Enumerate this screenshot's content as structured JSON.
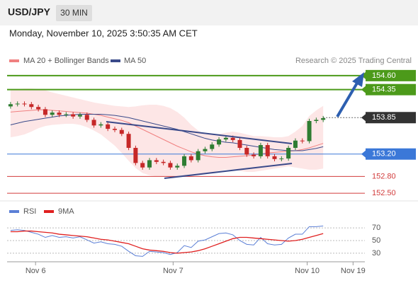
{
  "header": {
    "symbol": "USD/JPY",
    "timeframe": "30 MIN",
    "datetime": "Monday, November 10, 2025 3:50:35 AM CET",
    "credit": "Research © 2025 Trading Central"
  },
  "chart_data": [
    {
      "type": "candlestick",
      "xlim": [
        -0.5,
        51
      ],
      "xticks": [
        {
          "value": 3.6,
          "label": "Nov 6"
        },
        {
          "value": 23.4,
          "label": "Nov 7"
        },
        {
          "value": 42.7,
          "label": "Nov 10"
        },
        {
          "value": 49.3,
          "label": "Nov 19"
        }
      ],
      "ylim": [
        152.35,
        154.75
      ],
      "up_color": "#2e7d32",
      "down_color": "#c62828",
      "open": [
        154.05,
        154.09,
        154.1,
        154.09,
        154.04,
        154.0,
        153.9,
        153.94,
        153.9,
        153.91,
        153.87,
        153.9,
        153.81,
        153.71,
        153.73,
        153.65,
        153.63,
        153.56,
        153.31,
        153.04,
        152.96,
        153.09,
        153.06,
        153.04,
        152.96,
        152.99,
        153.16,
        153.09,
        153.25,
        153.29,
        153.37,
        153.46,
        153.49,
        153.45,
        153.31,
        153.19,
        153.16,
        153.36,
        153.16,
        153.11,
        153.12,
        153.31,
        153.44,
        153.43,
        153.79,
        153.81
      ],
      "high": [
        154.13,
        154.14,
        154.14,
        154.13,
        154.08,
        154.04,
        153.98,
        153.98,
        153.95,
        153.95,
        153.94,
        153.94,
        153.85,
        153.77,
        153.77,
        153.69,
        153.67,
        153.6,
        153.35,
        153.08,
        153.13,
        153.13,
        153.1,
        153.08,
        153.03,
        153.2,
        153.2,
        153.29,
        153.33,
        153.41,
        153.5,
        153.53,
        153.53,
        153.49,
        153.35,
        153.23,
        153.4,
        153.4,
        153.2,
        153.16,
        153.35,
        153.48,
        153.48,
        153.83,
        153.85,
        153.88
      ],
      "low": [
        154.01,
        154.05,
        154.05,
        154.0,
        153.96,
        153.86,
        153.86,
        153.86,
        153.86,
        153.83,
        153.83,
        153.77,
        153.67,
        153.67,
        153.61,
        153.59,
        153.52,
        153.27,
        153.0,
        152.92,
        152.92,
        153.02,
        153.0,
        152.92,
        152.92,
        152.95,
        153.05,
        153.05,
        153.21,
        153.25,
        153.33,
        153.42,
        153.41,
        153.27,
        153.15,
        153.12,
        153.12,
        153.12,
        153.07,
        153.07,
        153.08,
        153.27,
        153.39,
        153.39,
        153.75,
        153.77
      ],
      "close": [
        154.09,
        154.1,
        154.09,
        154.04,
        154.0,
        153.9,
        153.94,
        153.9,
        153.91,
        153.87,
        153.9,
        153.81,
        153.71,
        153.73,
        153.65,
        153.63,
        153.56,
        153.31,
        153.04,
        152.96,
        153.09,
        153.06,
        153.04,
        152.96,
        152.99,
        153.16,
        153.09,
        153.25,
        153.29,
        153.37,
        153.46,
        153.49,
        153.45,
        153.31,
        153.19,
        153.16,
        153.36,
        153.16,
        153.11,
        153.12,
        153.31,
        153.44,
        153.43,
        153.79,
        153.81,
        153.84
      ],
      "band": {
        "name": "MA 20 + Bollinger Bands",
        "color": "#f08080",
        "fill": "#fde0e0",
        "upper": [
          154.35,
          154.36,
          154.37,
          154.37,
          154.36,
          154.34,
          154.3,
          154.27,
          154.24,
          154.21,
          154.18,
          154.15,
          154.12,
          154.1,
          154.08,
          154.06,
          154.05,
          154.04,
          154.05,
          154.07,
          154.08,
          154.08,
          154.06,
          154.02,
          153.95,
          153.85,
          153.72,
          153.62,
          153.55,
          153.55,
          153.56,
          153.58,
          153.6,
          153.58,
          153.55,
          153.52,
          153.52,
          153.51,
          153.5,
          153.5,
          153.52,
          153.6,
          153.7,
          153.88,
          153.98,
          154.06
        ],
        "middle": [
          153.95,
          153.96,
          153.97,
          153.98,
          153.99,
          153.99,
          153.98,
          153.97,
          153.96,
          153.95,
          153.94,
          153.93,
          153.91,
          153.89,
          153.86,
          153.83,
          153.8,
          153.76,
          153.7,
          153.64,
          153.58,
          153.52,
          153.46,
          153.4,
          153.34,
          153.29,
          153.24,
          153.2,
          153.17,
          153.15,
          153.14,
          153.14,
          153.15,
          153.16,
          153.17,
          153.18,
          153.2,
          153.22,
          153.23,
          153.24,
          153.25,
          153.26,
          153.28,
          153.31,
          153.35,
          153.39
        ],
        "lower": [
          153.5,
          153.52,
          153.55,
          153.6,
          153.66,
          153.7,
          153.72,
          153.73,
          153.74,
          153.74,
          153.72,
          153.68,
          153.62,
          153.55,
          153.45,
          153.35,
          153.22,
          153.08,
          152.95,
          152.86,
          152.82,
          152.8,
          152.8,
          152.8,
          152.8,
          152.82,
          152.84,
          152.85,
          152.85,
          152.87,
          152.9,
          152.92,
          152.92,
          152.9,
          152.88,
          152.88,
          152.9,
          152.92,
          152.94,
          152.96,
          152.98,
          152.96,
          152.94,
          152.92,
          152.92,
          152.94
        ]
      },
      "series": [
        {
          "name": "MA 50",
          "color": "#3a4a8a",
          "values": [
            153.72,
            153.75,
            153.78,
            153.8,
            153.82,
            153.84,
            153.86,
            153.88,
            153.89,
            153.9,
            153.91,
            153.91,
            153.91,
            153.91,
            153.9,
            153.89,
            153.87,
            153.85,
            153.82,
            153.79,
            153.76,
            153.73,
            153.7,
            153.67,
            153.64,
            153.6,
            153.56,
            153.52,
            153.48,
            153.45,
            153.43,
            153.41,
            153.4,
            153.38,
            153.36,
            153.34,
            153.32,
            153.3,
            153.28,
            153.27,
            153.26,
            153.26,
            153.26,
            153.28,
            153.3,
            153.33
          ]
        }
      ],
      "levels": [
        {
          "value": 154.6,
          "label": "154.60",
          "color": "#4c9a1a",
          "style": "box"
        },
        {
          "value": 154.35,
          "label": "154.35",
          "color": "#4c9a1a",
          "style": "box"
        },
        {
          "value": 153.85,
          "label": "153.85",
          "color": "#333333",
          "style": "current"
        },
        {
          "value": 153.2,
          "label": "153.20",
          "color": "#3b78d8",
          "style": "box"
        },
        {
          "value": 152.8,
          "label": "152.80",
          "color": "#d23c3c",
          "style": "text"
        },
        {
          "value": 152.5,
          "label": "152.50",
          "color": "#d23c3c",
          "style": "text"
        }
      ]
    },
    {
      "type": "line",
      "ylim": [
        12,
        88
      ],
      "yticks": [
        30,
        50,
        70
      ],
      "series": [
        {
          "name": "RSI",
          "color": "#5b7fd6",
          "values": [
            66,
            67,
            66,
            63,
            60,
            55,
            58,
            55,
            56,
            54,
            56,
            51,
            46,
            48,
            45,
            44,
            41,
            33,
            26,
            25,
            33,
            32,
            31,
            28,
            31,
            42,
            39,
            49,
            51,
            56,
            61,
            62,
            59,
            50,
            44,
            43,
            55,
            45,
            43,
            44,
            54,
            60,
            60,
            72,
            72,
            73
          ]
        },
        {
          "name": "9MA",
          "color": "#e02020",
          "values": [
            64,
            64,
            65,
            65,
            64,
            63,
            62,
            60,
            59,
            58,
            57,
            56,
            54,
            52,
            51,
            49,
            47,
            45,
            41,
            37,
            35,
            34,
            33,
            31,
            30,
            31,
            32,
            34,
            37,
            41,
            45,
            49,
            53,
            55,
            55,
            54,
            53,
            52,
            51,
            50,
            49,
            50,
            52,
            55,
            58,
            61
          ]
        }
      ]
    }
  ]
}
